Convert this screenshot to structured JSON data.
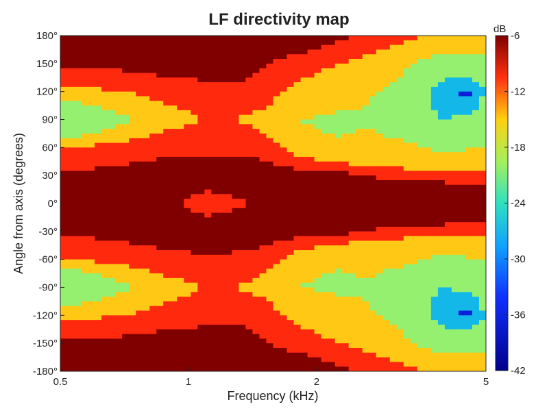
{
  "chart_data": {
    "type": "heatmap",
    "title": "LF directivity map",
    "xlabel": "Frequency (kHz)",
    "ylabel": "Angle from axis (degrees)",
    "x_scale": "log",
    "xlim": [
      0.5,
      5
    ],
    "ylim": [
      -180,
      180
    ],
    "x_ticks": [
      "0.5",
      "1",
      "2",
      "5"
    ],
    "x_tick_values": [
      0.5,
      1,
      2,
      5
    ],
    "y_ticks": [
      "180°",
      "150°",
      "120°",
      "90°",
      "60°",
      "30°",
      "0°",
      "-30°",
      "-60°",
      "-90°",
      "-120°",
      "-150°",
      "-180°"
    ],
    "y_tick_values": [
      180,
      150,
      120,
      90,
      60,
      30,
      0,
      -30,
      -60,
      -90,
      -120,
      -150,
      -180
    ],
    "colorbar": {
      "unit": "dB",
      "range": [
        -42,
        -6
      ],
      "ticks": [
        "-6",
        "-12",
        "-18",
        "-24",
        "-30",
        "-36",
        "-42"
      ],
      "tick_values": [
        -6,
        -12,
        -18,
        -24,
        -30,
        -36,
        -42
      ]
    },
    "frequencies_khz": [
      0.5,
      0.6,
      0.7,
      0.8,
      0.9,
      1.0,
      1.1,
      1.25,
      1.4,
      1.6,
      1.8,
      2.0,
      2.25,
      2.5,
      2.8,
      3.15,
      3.55,
      4.0,
      4.5,
      5.0
    ],
    "angles_deg": [
      0,
      15,
      30,
      45,
      60,
      75,
      90,
      105,
      120,
      135,
      150,
      165,
      180
    ],
    "level_db": [
      [
        -9,
        -9,
        -9,
        -9,
        -9,
        -13,
        -19,
        -15,
        -12,
        -10,
        -9,
        -8,
        -7,
        -7,
        -7,
        -7,
        -7,
        -7,
        -7,
        -7
      ],
      [
        -9,
        -9,
        -9,
        -9,
        -9,
        -9,
        -11,
        -9,
        -9,
        -9,
        -9,
        -8,
        -7,
        -7,
        -7,
        -7,
        -7,
        -7,
        -8,
        -9
      ],
      [
        -11,
        -10,
        -9,
        -9,
        -8,
        -8,
        -8,
        -8,
        -8,
        -8,
        -9,
        -9,
        -10,
        -11,
        -13,
        -15,
        -16,
        -17,
        -17,
        -17
      ],
      [
        -15,
        -14,
        -13,
        -12,
        -11,
        -11,
        -11,
        -11,
        -11,
        -13,
        -16,
        -18,
        -19,
        -20,
        -21,
        -21,
        -20,
        -20,
        -19,
        -19
      ],
      [
        -18,
        -17,
        -16,
        -15,
        -14,
        -13,
        -13,
        -13,
        -14,
        -17,
        -20,
        -20,
        -21,
        -22,
        -22,
        -23,
        -24,
        -26,
        -25,
        -24
      ],
      [
        -27,
        -24,
        -21,
        -19,
        -17,
        -16,
        -16,
        -16,
        -17,
        -20,
        -23,
        -23,
        -25,
        -23,
        -24,
        -25,
        -26,
        -28,
        -27,
        -26
      ],
      [
        -30,
        -29,
        -25,
        -23,
        -21,
        -19,
        -18,
        -18,
        -19,
        -22,
        -24,
        -25,
        -27,
        -26,
        -25,
        -27,
        -28,
        -30,
        -28,
        -26
      ],
      [
        -26,
        -24,
        -22,
        -20,
        -18,
        -17,
        -16,
        -16,
        -16,
        -19,
        -21,
        -20,
        -22,
        -23,
        -26,
        -30,
        -27,
        -33,
        -34,
        -27
      ],
      [
        -20,
        -19,
        -18,
        -17,
        -15,
        -14,
        -13,
        -13,
        -14,
        -17,
        -20,
        -20,
        -21,
        -21,
        -24,
        -26,
        -28,
        -34,
        -38,
        -29
      ],
      [
        -16,
        -15,
        -14,
        -13,
        -12,
        -12,
        -11,
        -11,
        -12,
        -15,
        -17,
        -19,
        -20,
        -22,
        -22,
        -24,
        -26,
        -29,
        -30,
        -28
      ],
      [
        -11,
        -11,
        -10,
        -10,
        -9,
        -9,
        -9,
        -9,
        -10,
        -13,
        -14,
        -16,
        -18,
        -20,
        -23,
        -23,
        -25,
        -26,
        -27,
        -26
      ],
      [
        -8,
        -8,
        -8,
        -8,
        -8,
        -8,
        -8,
        -8,
        -9,
        -10,
        -11,
        -12,
        -13,
        -14,
        -17,
        -20,
        -22,
        -23,
        -23,
        -22
      ],
      [
        -7,
        -7,
        -7,
        -7,
        -7,
        -7,
        -7,
        -7,
        -7,
        -8,
        -9,
        -10,
        -11,
        -12,
        -14,
        -16,
        -18,
        -20,
        -22,
        -20
      ]
    ],
    "contour_levels_db": [
      -12,
      -18,
      -24,
      -30,
      -36
    ],
    "mirrored_about_0": true
  }
}
